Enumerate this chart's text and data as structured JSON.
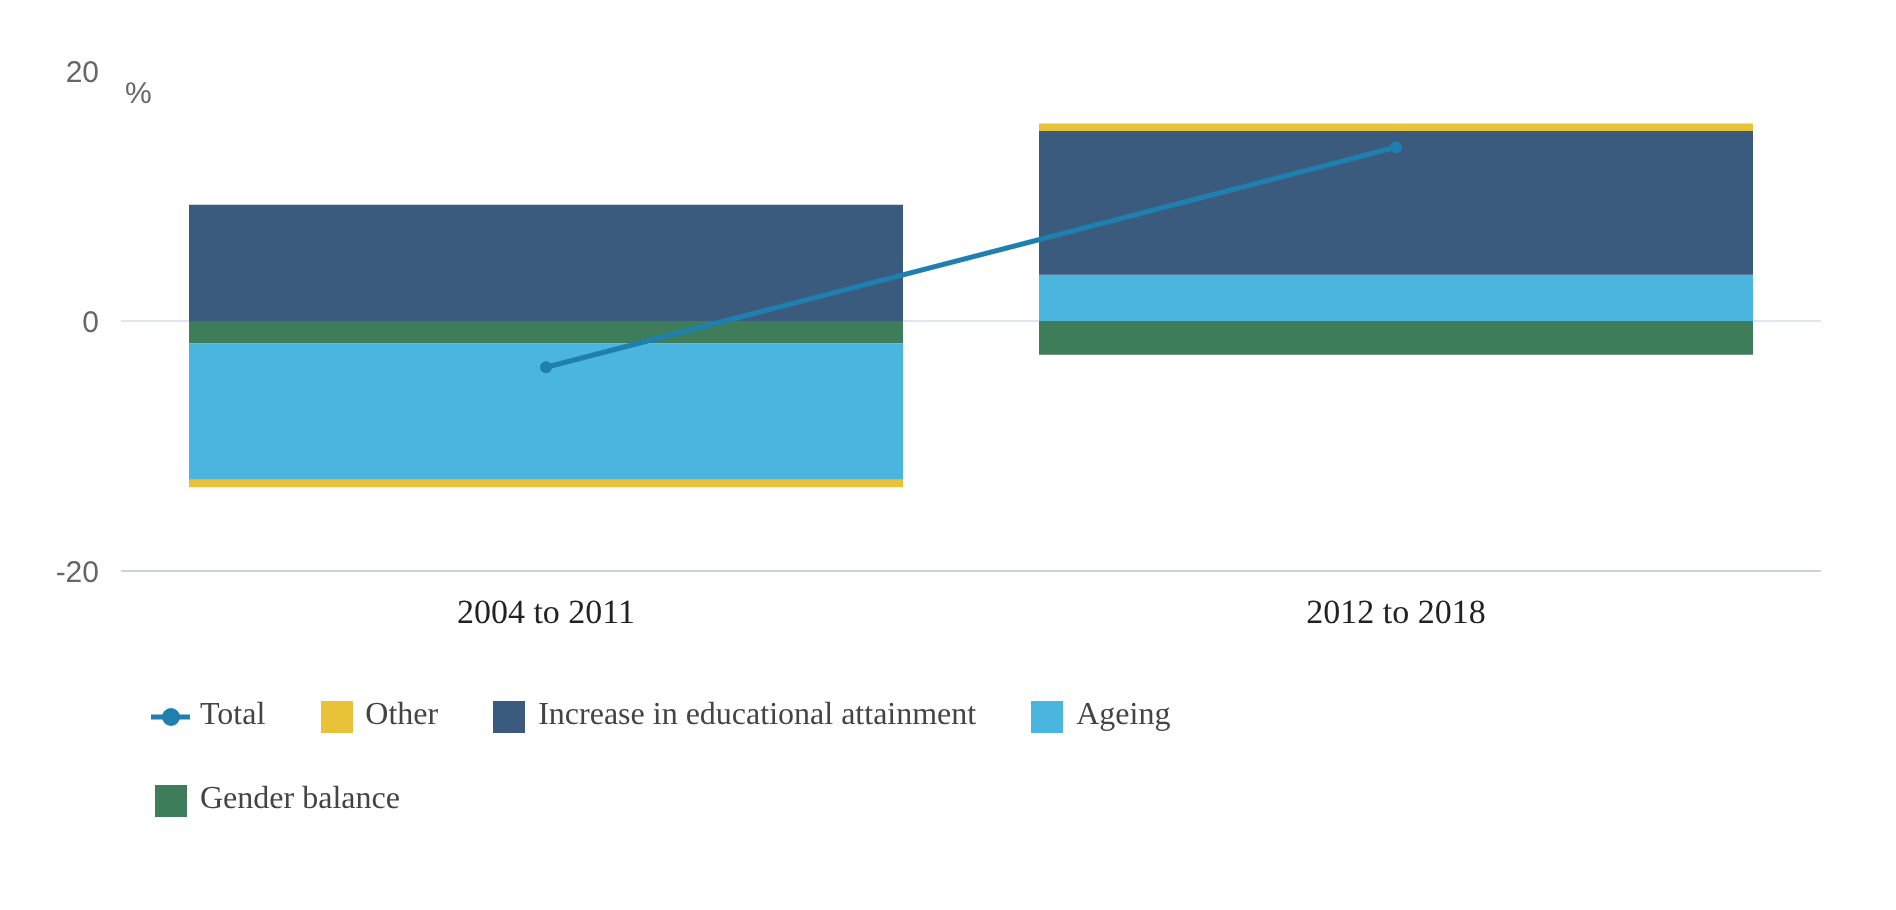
{
  "chart_data": {
    "type": "bar",
    "stacked": true,
    "ylabel": "%",
    "categories": [
      "2004 to 2011",
      "2012 to 2018"
    ],
    "ylim": [
      -20,
      20
    ],
    "yticks": [
      -20,
      0,
      20
    ],
    "grid": "y",
    "legend": "bottom",
    "series": [
      {
        "name": "Gender balance",
        "color": "#3e7d5a",
        "values": [
          -1.8,
          -2.7
        ]
      },
      {
        "name": "Ageing",
        "color": "#4ab5de",
        "values": [
          -10.9,
          3.7
        ]
      },
      {
        "name": "Increase in educational attainment",
        "color": "#3a5b7e",
        "values": [
          9.3,
          11.5
        ]
      },
      {
        "name": "Other",
        "color": "#e8c33a",
        "values": [
          -0.6,
          0.6
        ]
      },
      {
        "name": "Total",
        "type": "line",
        "marker": "circle",
        "color": "#1f7fae",
        "values": [
          -3.7,
          13.9
        ]
      }
    ]
  }
}
